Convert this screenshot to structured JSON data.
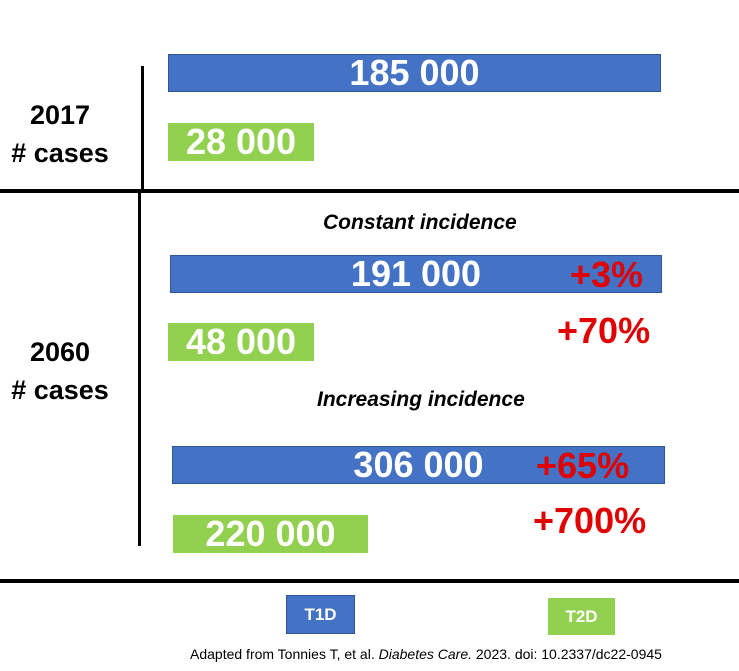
{
  "chart_data": {
    "type": "bar",
    "orientation": "horizontal",
    "groups": [
      {
        "label_year": "2017",
        "label_sub": "# cases",
        "scenarios": [
          {
            "heading": "",
            "t1d": "185 000",
            "t2d": "28 000",
            "t1d_value": 185000,
            "t2d_value": 28000,
            "t1d_change": "",
            "t2d_change": ""
          }
        ]
      },
      {
        "label_year": "2060",
        "label_sub": "# cases",
        "scenarios": [
          {
            "heading": "Constant incidence",
            "t1d": "191 000",
            "t2d": "48 000",
            "t1d_value": 191000,
            "t2d_value": 48000,
            "t1d_change": "+3%",
            "t2d_change": "+70%"
          },
          {
            "heading": "Increasing incidence",
            "t1d": "306 000",
            "t2d": "220 000",
            "t1d_value": 306000,
            "t2d_value": 220000,
            "t1d_change": "+65%",
            "t2d_change": "+700%"
          }
        ]
      }
    ],
    "legend": [
      {
        "name": "T1D",
        "color": "#4472c4"
      },
      {
        "name": "T2D",
        "color": "#92d050"
      }
    ],
    "legend_position": "bottom"
  },
  "caption": {
    "prefix": "Adapted from Tonnies T, et al. ",
    "journal": "Diabetes Care.",
    "suffix": " 2023. doi: 10.2337/dc22-0945"
  },
  "colors": {
    "t1d": "#4472c4",
    "t2d": "#92d050",
    "change": "#e00000"
  }
}
